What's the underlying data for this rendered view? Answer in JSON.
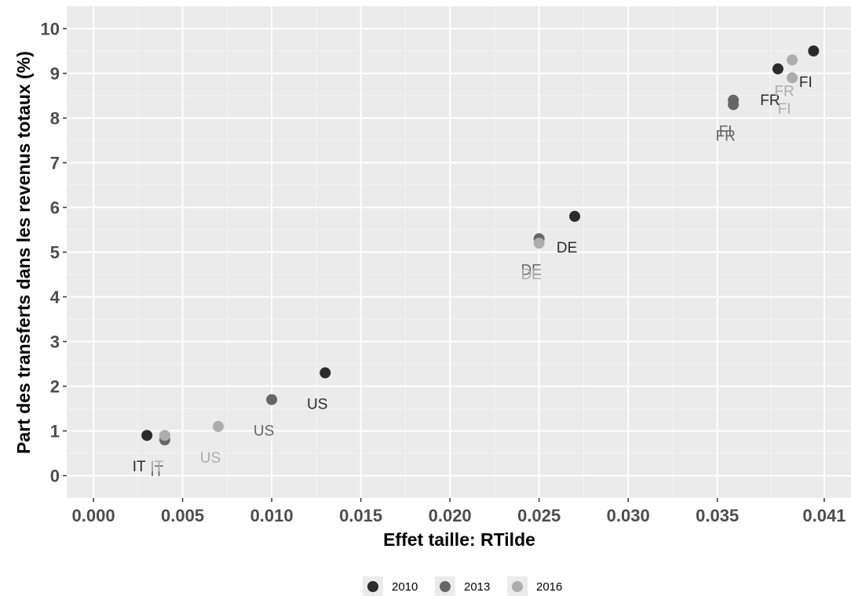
{
  "chart_data": {
    "type": "scatter",
    "title": "",
    "xlabel": "Effet taille: RTilde",
    "ylabel": "Part des transferts dans les revenus totaux (%)",
    "xlim": [
      -0.0015,
      0.0425
    ],
    "ylim": [
      -0.5,
      10.5
    ],
    "x_ticks": [
      0.0,
      0.005,
      0.01,
      0.015,
      0.02,
      0.025,
      0.03,
      0.035,
      0.041
    ],
    "x_tick_labels": [
      "0.000",
      "0.005",
      "0.010",
      "0.015",
      "0.020",
      "0.025",
      "0.030",
      "0.035",
      "0.041"
    ],
    "y_ticks": [
      0,
      1,
      2,
      3,
      4,
      5,
      6,
      7,
      8,
      9,
      10
    ],
    "y_tick_labels": [
      "0",
      "1",
      "2",
      "3",
      "4",
      "5",
      "6",
      "7",
      "8",
      "9",
      "10"
    ],
    "grid": true,
    "legend_position": "bottom",
    "series": [
      {
        "name": "2010",
        "color": "#2b2b2b",
        "points": [
          {
            "label": "IT",
            "x": 0.003,
            "y": 0.9
          },
          {
            "label": "US",
            "x": 0.013,
            "y": 2.3
          },
          {
            "label": "DE",
            "x": 0.027,
            "y": 5.8
          },
          {
            "label": "FR",
            "x": 0.0384,
            "y": 9.1
          },
          {
            "label": "FI",
            "x": 0.0404,
            "y": 9.5
          }
        ]
      },
      {
        "name": "2013",
        "color": "#666666",
        "points": [
          {
            "label": "IT",
            "x": 0.004,
            "y": 0.8
          },
          {
            "label": "US",
            "x": 0.01,
            "y": 1.7
          },
          {
            "label": "DE",
            "x": 0.025,
            "y": 5.3
          },
          {
            "label": "FR",
            "x": 0.0359,
            "y": 8.3
          },
          {
            "label": "FI",
            "x": 0.0359,
            "y": 8.4
          }
        ]
      },
      {
        "name": "2016",
        "color": "#adadad",
        "points": [
          {
            "label": "IT",
            "x": 0.004,
            "y": 0.9
          },
          {
            "label": "US",
            "x": 0.007,
            "y": 1.1
          },
          {
            "label": "DE",
            "x": 0.025,
            "y": 5.2
          },
          {
            "label": "FR",
            "x": 0.0392,
            "y": 9.3
          },
          {
            "label": "FI",
            "x": 0.0392,
            "y": 8.9
          }
        ]
      }
    ]
  }
}
